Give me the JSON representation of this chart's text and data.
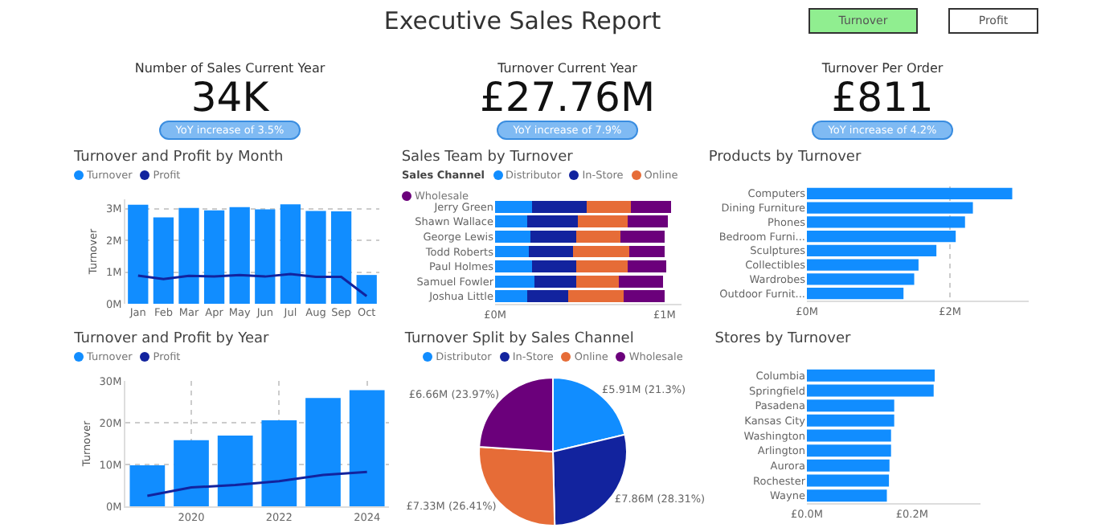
{
  "chart_data": [
    {
      "type": "other",
      "title": "Executive Sales Report",
      "annotations": [
        "Turnover",
        "Profit"
      ]
    },
    {
      "type": "other",
      "title": "Number of Sales Current Year",
      "annotations": [
        "34K",
        "YoY increase of 3.5%"
      ]
    },
    {
      "type": "other",
      "title": "Turnover Current Year",
      "annotations": [
        "£27.76M",
        "YoY increase of 7.9%"
      ]
    },
    {
      "type": "other",
      "title": "Turnover Per Order",
      "annotations": [
        "£811",
        "YoY increase of 4.2%"
      ]
    },
    {
      "type": "bar",
      "title": "Turnover and Profit by Month",
      "ylabel": "Turnover",
      "categories": [
        "Jan",
        "Feb",
        "Mar",
        "Apr",
        "May",
        "Jun",
        "Jul",
        "Aug",
        "Sep",
        "Oct"
      ],
      "series": [
        {
          "name": "Turnover",
          "type": "bar",
          "color": "#118dff",
          "values": [
            3.13,
            2.73,
            3.03,
            2.95,
            3.05,
            2.98,
            3.14,
            2.93,
            2.92,
            0.91
          ]
        },
        {
          "name": "Profit",
          "type": "line",
          "color": "#12239e",
          "values": [
            0.89,
            0.78,
            0.88,
            0.86,
            0.91,
            0.86,
            0.94,
            0.85,
            0.85,
            0.24
          ]
        }
      ],
      "ylim": [
        0,
        3.3
      ],
      "yticks": [
        {
          "value": 0,
          "label": "0M"
        },
        {
          "value": 1,
          "label": "1M"
        },
        {
          "value": 2,
          "label": "2M"
        },
        {
          "value": 3,
          "label": "3M"
        }
      ],
      "grid": "y",
      "legend": "top left"
    },
    {
      "type": "bar",
      "title": "Sales Team by Turnover",
      "legend_title": "Sales Channel",
      "orientation": "horizontal",
      "stacked": true,
      "categories": [
        "Jerry Green",
        "Shawn Wallace",
        "George Lewis",
        "Todd Roberts",
        "Paul Holmes",
        "Samuel Fowler",
        "Joshua Little"
      ],
      "series": [
        {
          "name": "Distributor",
          "color": "#118dff",
          "values": [
            0.22,
            0.19,
            0.21,
            0.2,
            0.22,
            0.23,
            0.19
          ]
        },
        {
          "name": "In-Store",
          "color": "#12239e",
          "values": [
            0.32,
            0.3,
            0.27,
            0.26,
            0.26,
            0.25,
            0.24
          ]
        },
        {
          "name": "Online",
          "color": "#e66c37",
          "values": [
            0.26,
            0.29,
            0.26,
            0.33,
            0.3,
            0.25,
            0.33
          ]
        },
        {
          "name": "Wholesale",
          "color": "#6b007b",
          "values": [
            0.24,
            0.24,
            0.26,
            0.21,
            0.23,
            0.26,
            0.24
          ]
        }
      ],
      "xlim": [
        0,
        1.1
      ],
      "xticks": [
        {
          "value": 0,
          "label": "£0M"
        },
        {
          "value": 1,
          "label": "£1M"
        }
      ],
      "legend": "top left"
    },
    {
      "type": "bar",
      "title": "Products by Turnover",
      "orientation": "horizontal",
      "categories": [
        "Computers",
        "Dining Furniture",
        "Phones",
        "Bedroom Furni...",
        "Sculptures",
        "Collectibles",
        "Wardrobes",
        "Outdoor Furnit..."
      ],
      "series": [
        {
          "color": "#118dff",
          "values": [
            2.87,
            2.32,
            2.21,
            2.08,
            1.81,
            1.56,
            1.5,
            1.35
          ]
        }
      ],
      "xlim": [
        0,
        3.1
      ],
      "xticks": [
        {
          "value": 0,
          "label": "£0M"
        },
        {
          "value": 2,
          "label": "£2M"
        }
      ],
      "grid": "x"
    },
    {
      "type": "bar",
      "title": "Turnover and Profit by Year",
      "ylabel": "Turnover",
      "x": [
        2019,
        2020,
        2021,
        2022,
        2023,
        2024
      ],
      "series": [
        {
          "name": "Turnover",
          "type": "bar",
          "color": "#118dff",
          "values": [
            9.8,
            15.8,
            16.9,
            20.6,
            25.9,
            27.8
          ]
        },
        {
          "name": "Profit",
          "type": "line",
          "color": "#12239e",
          "values": [
            2.5,
            4.5,
            5.1,
            6.0,
            7.5,
            8.2
          ]
        }
      ],
      "xlim": [
        2018.5,
        2024.5
      ],
      "xticks": [
        2020,
        2022,
        2024
      ],
      "ylim": [
        0,
        30
      ],
      "yticks": [
        {
          "value": 0,
          "label": "0M"
        },
        {
          "value": 10,
          "label": "10M"
        },
        {
          "value": 20,
          "label": "20M"
        },
        {
          "value": 30,
          "label": "30M"
        }
      ],
      "grid": true,
      "legend": "top left"
    },
    {
      "type": "pie",
      "title": "Turnover Split by Sales Channel",
      "categories": [
        "Distributor",
        "In-Store",
        "Online",
        "Wholesale"
      ],
      "values": [
        21.3,
        28.31,
        26.41,
        23.97
      ],
      "colors": [
        "#118dff",
        "#12239e",
        "#e66c37",
        "#6b007b"
      ],
      "value_labels": [
        "£5.91M (21.3%)",
        "£7.86M (28.31%)",
        "£7.33M (26.41%)",
        "£6.66M (23.97%)"
      ],
      "legend": "top"
    },
    {
      "type": "bar",
      "title": "Stores by Turnover",
      "orientation": "horizontal",
      "categories": [
        "Columbia",
        "Springfield",
        "Pasadena",
        "Kansas City",
        "Washington",
        "Arlington",
        "Aurora",
        "Rochester",
        "Wayne"
      ],
      "series": [
        {
          "color": "#118dff",
          "values": [
            0.243,
            0.241,
            0.166,
            0.166,
            0.16,
            0.16,
            0.157,
            0.156,
            0.152
          ]
        }
      ],
      "xlim": [
        0,
        0.33
      ],
      "xticks": [
        {
          "value": 0,
          "label": "£0.0M"
        },
        {
          "value": 0.2,
          "label": "£0.2M"
        }
      ]
    }
  ]
}
